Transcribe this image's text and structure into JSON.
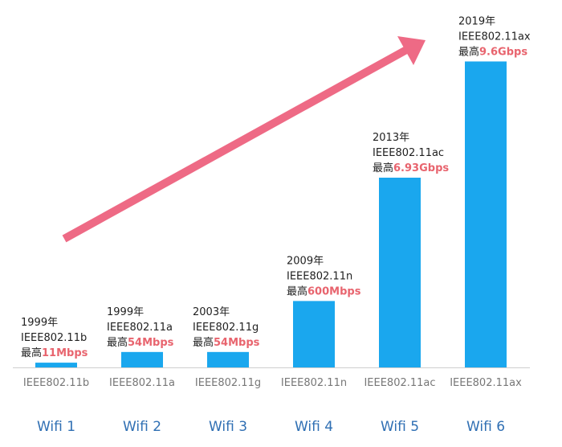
{
  "colors": {
    "bar": "#1aa7ee",
    "arrow": "#ee6a85",
    "highlight": "#e8646e",
    "generation_label": "#2f6fb3",
    "baseline": "#cfcfcf"
  },
  "chart_data": {
    "type": "bar",
    "categories": [
      "IEEE802.11b",
      "IEEE802.11a",
      "IEEE802.11g",
      "IEEE802.11n",
      "IEEE802.11ac",
      "IEEE802.11ax"
    ],
    "generations": [
      "Wifi 1",
      "Wifi 2",
      "Wifi 3",
      "Wifi 4",
      "Wifi 5",
      "Wifi 6"
    ],
    "values": [
      0.4,
      1.3,
      1.3,
      5.6,
      16.0,
      25.8
    ],
    "ylim": [
      0,
      28
    ],
    "annotations": [
      {
        "year": "1999年",
        "standard": "IEEE802.11b",
        "max_prefix": "最高",
        "max_speed": "11Mbps"
      },
      {
        "year": "1999年",
        "standard": "IEEE802.11a",
        "max_prefix": "最高",
        "max_speed": "54Mbps"
      },
      {
        "year": "2003年",
        "standard": "IEEE802.11g",
        "max_prefix": "最高",
        "max_speed": "54Mbps"
      },
      {
        "year": "2009年",
        "standard": "IEEE802.11n",
        "max_prefix": "最高",
        "max_speed": "600Mbps"
      },
      {
        "year": "2013年",
        "standard": "IEEE802.11ac",
        "max_prefix": "最高",
        "max_speed": "6.93Gbps"
      },
      {
        "year": "2019年",
        "standard": "IEEE802.11ax",
        "max_prefix": "最高",
        "max_speed": "9.6Gbps"
      }
    ],
    "grid": false,
    "legend": "none",
    "trend_arrow": true
  }
}
